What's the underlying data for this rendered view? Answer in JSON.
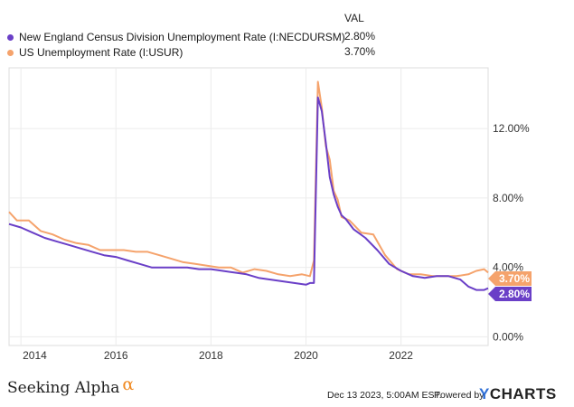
{
  "legend": {
    "header": "VAL",
    "items": [
      {
        "label": "New England Census Division Unemployment Rate (I:NECDURSM)",
        "value": "2.80%",
        "color": "#6a3fc7"
      },
      {
        "label": "US Unemployment Rate (I:USUR)",
        "value": "3.70%",
        "color": "#f5a36c"
      }
    ]
  },
  "footer": {
    "brand": "Seeking Alpha",
    "brand_symbol": "α",
    "timestamp": "Dec 13 2023, 5:00AM EST.",
    "powered_by": "Powered by",
    "ycharts_y": "Y",
    "ycharts_rest": "CHARTS"
  },
  "chart_data": {
    "type": "line",
    "x_ticks": [
      "2014",
      "2016",
      "2018",
      "2020",
      "2022"
    ],
    "y_ticks": [
      "0.00%",
      "4.00%",
      "8.00%",
      "12.00%"
    ],
    "y_tick_values": [
      0,
      4,
      8,
      12
    ],
    "xlim": [
      "2013-10",
      "2023-11"
    ],
    "ylim": [
      -0.5,
      15.5
    ],
    "y_axis_side": "right",
    "grid": true,
    "series": [
      {
        "name": "New England Census Division Unemployment Rate (I:NECDURSM)",
        "color": "#6a3fc7",
        "end_label": "2.80%",
        "points": [
          [
            "2013-10",
            6.5
          ],
          [
            "2014-01",
            6.3
          ],
          [
            "2014-04",
            6.0
          ],
          [
            "2014-07",
            5.7
          ],
          [
            "2014-10",
            5.5
          ],
          [
            "2015-01",
            5.3
          ],
          [
            "2015-04",
            5.1
          ],
          [
            "2015-07",
            4.9
          ],
          [
            "2015-10",
            4.7
          ],
          [
            "2016-01",
            4.6
          ],
          [
            "2016-04",
            4.4
          ],
          [
            "2016-07",
            4.2
          ],
          [
            "2016-10",
            4.0
          ],
          [
            "2017-01",
            4.0
          ],
          [
            "2017-04",
            4.0
          ],
          [
            "2017-07",
            4.0
          ],
          [
            "2017-10",
            3.9
          ],
          [
            "2018-01",
            3.9
          ],
          [
            "2018-04",
            3.8
          ],
          [
            "2018-07",
            3.7
          ],
          [
            "2018-10",
            3.6
          ],
          [
            "2019-01",
            3.4
          ],
          [
            "2019-04",
            3.3
          ],
          [
            "2019-07",
            3.2
          ],
          [
            "2019-10",
            3.1
          ],
          [
            "2020-01",
            3.0
          ],
          [
            "2020-02",
            3.1
          ],
          [
            "2020-03",
            3.1
          ],
          [
            "2020-04",
            13.8
          ],
          [
            "2020-05",
            13.0
          ],
          [
            "2020-06",
            11.2
          ],
          [
            "2020-07",
            9.2
          ],
          [
            "2020-08",
            8.2
          ],
          [
            "2020-09",
            7.5
          ],
          [
            "2020-10",
            7.0
          ],
          [
            "2020-11",
            6.8
          ],
          [
            "2021-01",
            6.2
          ],
          [
            "2021-04",
            5.7
          ],
          [
            "2021-07",
            5.0
          ],
          [
            "2021-10",
            4.2
          ],
          [
            "2022-01",
            3.8
          ],
          [
            "2022-04",
            3.5
          ],
          [
            "2022-07",
            3.4
          ],
          [
            "2022-10",
            3.5
          ],
          [
            "2023-01",
            3.5
          ],
          [
            "2023-04",
            3.3
          ],
          [
            "2023-06",
            2.9
          ],
          [
            "2023-08",
            2.7
          ],
          [
            "2023-10",
            2.7
          ],
          [
            "2023-11",
            2.8
          ]
        ]
      },
      {
        "name": "US Unemployment Rate (I:USUR)",
        "color": "#f5a36c",
        "end_label": "3.70%",
        "points": [
          [
            "2013-10",
            7.2
          ],
          [
            "2013-12",
            6.7
          ],
          [
            "2014-03",
            6.7
          ],
          [
            "2014-06",
            6.1
          ],
          [
            "2014-09",
            5.9
          ],
          [
            "2014-12",
            5.6
          ],
          [
            "2015-03",
            5.4
          ],
          [
            "2015-06",
            5.3
          ],
          [
            "2015-09",
            5.0
          ],
          [
            "2015-12",
            5.0
          ],
          [
            "2016-03",
            5.0
          ],
          [
            "2016-06",
            4.9
          ],
          [
            "2016-09",
            4.9
          ],
          [
            "2016-12",
            4.7
          ],
          [
            "2017-03",
            4.5
          ],
          [
            "2017-06",
            4.3
          ],
          [
            "2017-09",
            4.2
          ],
          [
            "2017-12",
            4.1
          ],
          [
            "2018-03",
            4.0
          ],
          [
            "2018-06",
            4.0
          ],
          [
            "2018-09",
            3.7
          ],
          [
            "2018-12",
            3.9
          ],
          [
            "2019-03",
            3.8
          ],
          [
            "2019-06",
            3.6
          ],
          [
            "2019-09",
            3.5
          ],
          [
            "2019-12",
            3.6
          ],
          [
            "2020-02",
            3.5
          ],
          [
            "2020-03",
            4.4
          ],
          [
            "2020-04",
            14.7
          ],
          [
            "2020-05",
            13.2
          ],
          [
            "2020-06",
            11.0
          ],
          [
            "2020-07",
            10.2
          ],
          [
            "2020-08",
            8.4
          ],
          [
            "2020-09",
            7.9
          ],
          [
            "2020-10",
            6.9
          ],
          [
            "2020-12",
            6.7
          ],
          [
            "2021-03",
            6.0
          ],
          [
            "2021-06",
            5.9
          ],
          [
            "2021-09",
            4.7
          ],
          [
            "2021-12",
            3.9
          ],
          [
            "2022-03",
            3.6
          ],
          [
            "2022-06",
            3.6
          ],
          [
            "2022-09",
            3.5
          ],
          [
            "2022-12",
            3.5
          ],
          [
            "2023-03",
            3.5
          ],
          [
            "2023-06",
            3.6
          ],
          [
            "2023-08",
            3.8
          ],
          [
            "2023-10",
            3.9
          ],
          [
            "2023-11",
            3.7
          ]
        ]
      }
    ]
  }
}
